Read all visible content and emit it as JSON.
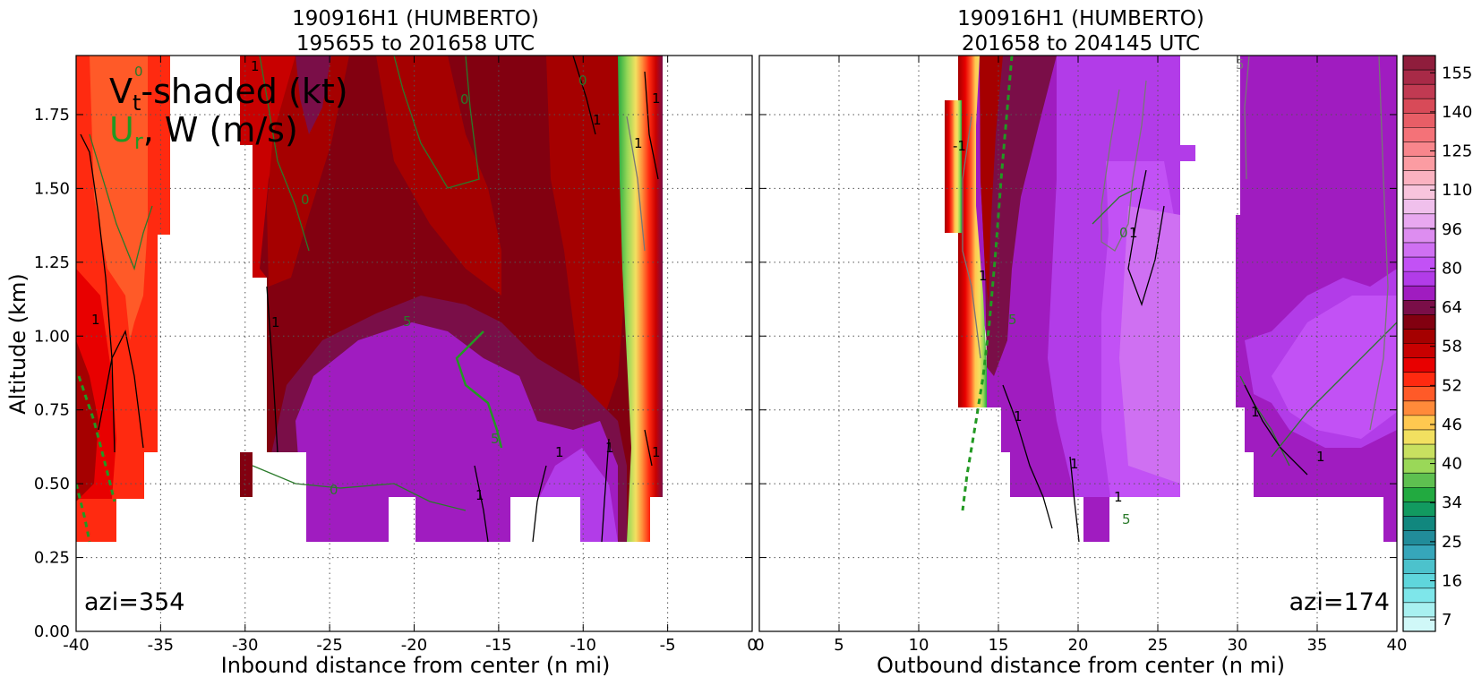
{
  "chart_data": [
    {
      "type": "heatmap",
      "title_line1": "190916H1 (HUMBERTO)",
      "title_line2": "195655 to 201658 UTC",
      "xlabel": "Inbound distance from center (n mi)",
      "ylabel": "Altitude (km)",
      "xlim": [
        -40,
        0
      ],
      "ylim": [
        0.0,
        1.95
      ],
      "xticks": [
        -40,
        -35,
        -30,
        -25,
        -20,
        -15,
        -10,
        -5,
        0
      ],
      "yticks": [
        0.0,
        0.25,
        0.5,
        0.75,
        1.0,
        1.25,
        1.5,
        1.75
      ],
      "ytick_labels": [
        "0.00",
        "0.25",
        "0.50",
        "0.75",
        "1.00",
        "1.25",
        "1.50",
        "1.75"
      ],
      "annotation": "azi=354",
      "legend_line1": "V",
      "legend_sub1": "t",
      "legend_rest1": "-shaded (kt)",
      "legend_line2": "U",
      "legend_sub2": "r",
      "legend_rest2": ", W (m/s)",
      "grid": true
    },
    {
      "type": "heatmap",
      "title_line1": "190916H1 (HUMBERTO)",
      "title_line2": "201658 to 204145 UTC",
      "xlabel": "Outbound distance from center (n mi)",
      "xlim": [
        0,
        40
      ],
      "ylim": [
        0.0,
        1.95
      ],
      "xticks": [
        0,
        5,
        10,
        15,
        20,
        25,
        30,
        35,
        40
      ],
      "annotation": "azi=174",
      "grid": true
    }
  ],
  "colorbar": {
    "tick_labels": [
      "155",
      "140",
      "125",
      "110",
      "96",
      "80",
      "64",
      "58",
      "52",
      "46",
      "40",
      "34",
      "25",
      "16",
      "7"
    ],
    "colors": [
      "#8f1d3c",
      "#a82a47",
      "#c13a52",
      "#d84a58",
      "#e85e66",
      "#f47278",
      "#f8868c",
      "#fb9ca2",
      "#fbb2c0",
      "#f8c4dc",
      "#f0c0ec",
      "#e8a8f0",
      "#dd8df0",
      "#cf70f2",
      "#c251f5",
      "#b23ce8",
      "#a01cc0",
      "#7a0e48",
      "#820010",
      "#a50000",
      "#c80000",
      "#e80000",
      "#ff2a10",
      "#ff5a28",
      "#ff8a3a",
      "#ffc850",
      "#f2e060",
      "#c8e060",
      "#9ad858",
      "#5ec050",
      "#22aa40",
      "#129a60",
      "#11877e",
      "#218c9a",
      "#36a6ba",
      "#4cc2cc",
      "#5fd6dc",
      "#7ee6ea",
      "#a8f0f0",
      "#d0f8f8"
    ]
  }
}
